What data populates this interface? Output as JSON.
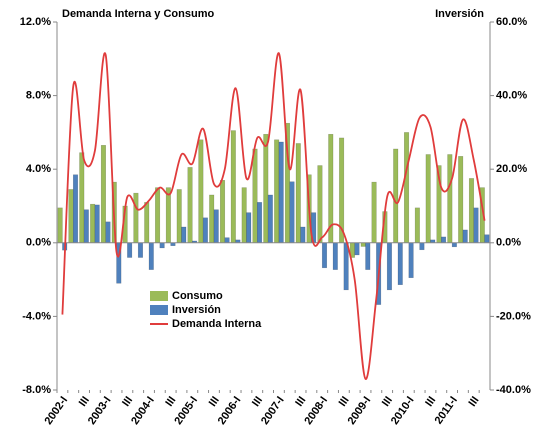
{
  "chart_data": {
    "type": "bar-line",
    "ylabel": "Demanda Interna y Consumo",
    "y2label": "Inversión",
    "categories": [
      "2002-I",
      null,
      "III",
      null,
      "2003-I",
      null,
      "III",
      null,
      "2004-I",
      null,
      "III",
      null,
      "2005-I",
      null,
      "III",
      null,
      "2006-I",
      null,
      "III",
      null,
      "2007-I",
      null,
      "III",
      null,
      "2008-I",
      null,
      "III",
      null,
      "2009-I",
      null,
      "III",
      null,
      "2010-I",
      null,
      "III",
      null,
      "2011-I",
      null,
      "III",
      null
    ],
    "ylim": [
      -8,
      12
    ],
    "yticks": [
      {
        "value": -8,
        "label": "-8.0%"
      },
      {
        "value": -4,
        "label": "-4.0%"
      },
      {
        "value": 0,
        "label": "0.0%"
      },
      {
        "value": 4,
        "label": "4.0%"
      },
      {
        "value": 8,
        "label": "8.0%"
      },
      {
        "value": 12,
        "label": "12.0%"
      }
    ],
    "y2lim": [
      -40,
      60
    ],
    "y2ticks": [
      {
        "value": -40,
        "label": "-40.0%"
      },
      {
        "value": -20,
        "label": "-20.0%"
      },
      {
        "value": 0,
        "label": "0.0%"
      },
      {
        "value": 20,
        "label": "20.0%"
      },
      {
        "value": 40,
        "label": "40.0%"
      },
      {
        "value": 60,
        "label": "60.0%"
      }
    ],
    "series": [
      {
        "name": "Consumo",
        "type": "bar",
        "color": "#9bbb59",
        "values": [
          1.9,
          2.9,
          4.9,
          2.1,
          5.3,
          3.3,
          2.0,
          2.7,
          2.2,
          3.0,
          3.0,
          2.9,
          4.1,
          5.6,
          2.6,
          3.4,
          6.1,
          3.0,
          5.1,
          5.9,
          5.6,
          6.5,
          5.4,
          3.7,
          4.2,
          5.9,
          5.7,
          -0.8,
          -0.2,
          3.3,
          1.7,
          5.1,
          6.0,
          1.9,
          4.8,
          4.2,
          4.8,
          4.7,
          3.5,
          3.0
        ]
      },
      {
        "name": "Inversión",
        "type": "bar",
        "axis": "y2",
        "color": "#4f81bd",
        "values": [
          -2.0,
          18.5,
          9.0,
          10.3,
          5.7,
          -11.0,
          -4.0,
          -4.0,
          -7.3,
          -1.4,
          -0.8,
          4.3,
          0.5,
          6.8,
          9.0,
          1.4,
          0.8,
          8.2,
          11.0,
          13.0,
          27.4,
          16.6,
          4.3,
          8.2,
          -6.8,
          -7.3,
          -12.8,
          -3.3,
          -7.3,
          -16.8,
          -12.8,
          -11.4,
          -9.5,
          -1.9,
          0.8,
          1.6,
          -1.1,
          3.5,
          9.5,
          2.2
        ]
      },
      {
        "name": "Demanda Interna",
        "type": "line",
        "color": "#e03c3c",
        "values": [
          -3.9,
          8.5,
          4.5,
          5.0,
          10.2,
          -0.5,
          2.5,
          1.8,
          2.3,
          3.0,
          2.7,
          4.8,
          4.3,
          6.2,
          3.2,
          4.0,
          8.4,
          3.5,
          5.7,
          5.5,
          10.3,
          4.0,
          8.3,
          0.5,
          0.3,
          1.0,
          0.5,
          -2.0,
          -7.4,
          -3.0,
          2.5,
          2.2,
          4.5,
          6.8,
          6.3,
          3.0,
          3.5,
          6.7,
          4.5,
          1.2
        ]
      }
    ]
  }
}
